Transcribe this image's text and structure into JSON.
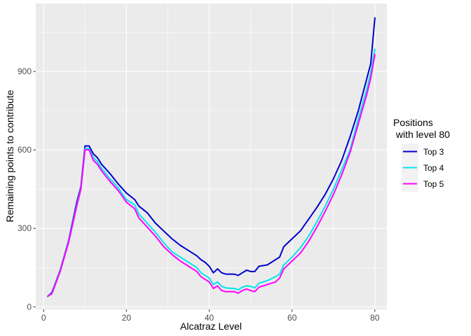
{
  "chart_data": {
    "type": "line",
    "xlabel": "Alcatraz Level",
    "ylabel": "Remaining points to contribute",
    "xlim": [
      -1.9,
      82.9
    ],
    "ylim": [
      -10,
      1160
    ],
    "xticks": [
      0,
      20,
      40,
      60,
      80
    ],
    "yticks": [
      0,
      300,
      600,
      900
    ],
    "grid": true,
    "legend_position": "right",
    "legend_title_lines": [
      "Positions",
      " with level 80"
    ],
    "series": [
      {
        "name": "Top 3",
        "color": "#0000CD",
        "points": [
          [
            1,
            40
          ],
          [
            2,
            55
          ],
          [
            4,
            140
          ],
          [
            6,
            250
          ],
          [
            8,
            400
          ],
          [
            9,
            460
          ],
          [
            10,
            615
          ],
          [
            11,
            615
          ],
          [
            12,
            585
          ],
          [
            13,
            570
          ],
          [
            14,
            545
          ],
          [
            16,
            510
          ],
          [
            18,
            470
          ],
          [
            20,
            435
          ],
          [
            22,
            410
          ],
          [
            23,
            385
          ],
          [
            25,
            360
          ],
          [
            27,
            320
          ],
          [
            29,
            290
          ],
          [
            31,
            260
          ],
          [
            33,
            235
          ],
          [
            35,
            215
          ],
          [
            37,
            195
          ],
          [
            38,
            180
          ],
          [
            39,
            170
          ],
          [
            40,
            155
          ],
          [
            41,
            130
          ],
          [
            42,
            145
          ],
          [
            43,
            130
          ],
          [
            44,
            125
          ],
          [
            46,
            125
          ],
          [
            47,
            120
          ],
          [
            48,
            130
          ],
          [
            49,
            140
          ],
          [
            50,
            135
          ],
          [
            51,
            135
          ],
          [
            52,
            155
          ],
          [
            54,
            160
          ],
          [
            56,
            180
          ],
          [
            57,
            190
          ],
          [
            58,
            230
          ],
          [
            60,
            260
          ],
          [
            62,
            290
          ],
          [
            64,
            335
          ],
          [
            66,
            380
          ],
          [
            68,
            430
          ],
          [
            70,
            490
          ],
          [
            72,
            560
          ],
          [
            74,
            650
          ],
          [
            76,
            750
          ],
          [
            78,
            870
          ],
          [
            79,
            930
          ],
          [
            80,
            1105
          ]
        ]
      },
      {
        "name": "Top 4",
        "color": "#00E5EE",
        "points": [
          [
            1,
            40
          ],
          [
            2,
            52
          ],
          [
            4,
            138
          ],
          [
            6,
            246
          ],
          [
            8,
            390
          ],
          [
            9,
            455
          ],
          [
            10,
            605
          ],
          [
            11,
            605
          ],
          [
            12,
            570
          ],
          [
            13,
            555
          ],
          [
            14,
            530
          ],
          [
            16,
            490
          ],
          [
            18,
            455
          ],
          [
            20,
            410
          ],
          [
            22,
            390
          ],
          [
            23,
            355
          ],
          [
            25,
            320
          ],
          [
            27,
            285
          ],
          [
            29,
            245
          ],
          [
            31,
            210
          ],
          [
            33,
            190
          ],
          [
            35,
            170
          ],
          [
            37,
            150
          ],
          [
            38,
            130
          ],
          [
            39,
            120
          ],
          [
            40,
            110
          ],
          [
            41,
            85
          ],
          [
            42,
            95
          ],
          [
            43,
            78
          ],
          [
            44,
            72
          ],
          [
            46,
            70
          ],
          [
            47,
            65
          ],
          [
            48,
            75
          ],
          [
            49,
            80
          ],
          [
            50,
            78
          ],
          [
            51,
            72
          ],
          [
            52,
            90
          ],
          [
            54,
            100
          ],
          [
            56,
            115
          ],
          [
            57,
            125
          ],
          [
            58,
            160
          ],
          [
            60,
            190
          ],
          [
            62,
            225
          ],
          [
            64,
            270
          ],
          [
            66,
            325
          ],
          [
            68,
            385
          ],
          [
            70,
            450
          ],
          [
            72,
            525
          ],
          [
            74,
            600
          ],
          [
            76,
            720
          ],
          [
            78,
            830
          ],
          [
            79,
            895
          ],
          [
            80,
            985
          ]
        ]
      },
      {
        "name": "Top 5",
        "color": "#FF00FF",
        "points": [
          [
            1,
            40
          ],
          [
            2,
            50
          ],
          [
            4,
            135
          ],
          [
            6,
            244
          ],
          [
            8,
            385
          ],
          [
            9,
            450
          ],
          [
            10,
            600
          ],
          [
            11,
            600
          ],
          [
            12,
            560
          ],
          [
            13,
            545
          ],
          [
            14,
            520
          ],
          [
            16,
            480
          ],
          [
            18,
            445
          ],
          [
            20,
            400
          ],
          [
            22,
            375
          ],
          [
            23,
            340
          ],
          [
            25,
            305
          ],
          [
            27,
            270
          ],
          [
            29,
            230
          ],
          [
            31,
            200
          ],
          [
            33,
            175
          ],
          [
            35,
            155
          ],
          [
            37,
            135
          ],
          [
            38,
            115
          ],
          [
            39,
            105
          ],
          [
            40,
            95
          ],
          [
            41,
            70
          ],
          [
            42,
            80
          ],
          [
            43,
            62
          ],
          [
            44,
            58
          ],
          [
            46,
            58
          ],
          [
            47,
            52
          ],
          [
            48,
            62
          ],
          [
            49,
            68
          ],
          [
            50,
            62
          ],
          [
            51,
            58
          ],
          [
            52,
            75
          ],
          [
            54,
            85
          ],
          [
            56,
            95
          ],
          [
            57,
            110
          ],
          [
            58,
            145
          ],
          [
            60,
            175
          ],
          [
            62,
            205
          ],
          [
            64,
            250
          ],
          [
            66,
            305
          ],
          [
            68,
            365
          ],
          [
            70,
            430
          ],
          [
            72,
            505
          ],
          [
            74,
            590
          ],
          [
            76,
            700
          ],
          [
            78,
            810
          ],
          [
            79,
            875
          ],
          [
            80,
            965
          ]
        ]
      }
    ]
  }
}
